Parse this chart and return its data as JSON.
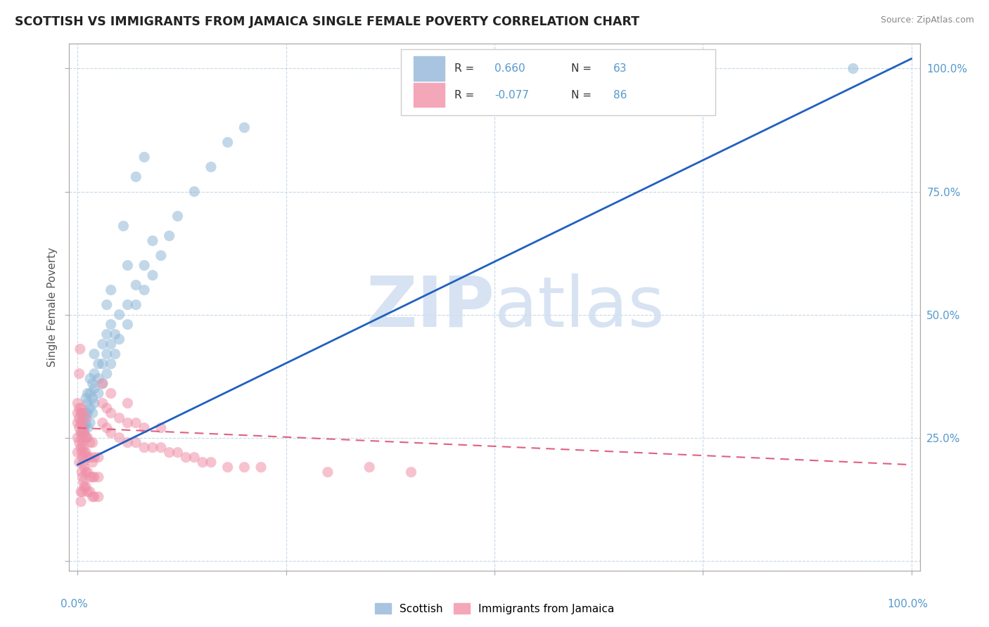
{
  "title": "SCOTTISH VS IMMIGRANTS FROM JAMAICA SINGLE FEMALE POVERTY CORRELATION CHART",
  "source": "Source: ZipAtlas.com",
  "ylabel": "Single Female Poverty",
  "watermark": "ZIPatlas",
  "scottish_color": "#90b8d8",
  "jamaica_color": "#f090a8",
  "scottish_line_color": "#2060c0",
  "jamaica_line_color": "#e06080",
  "background_color": "#ffffff",
  "grid_color": "#c8d8e8",
  "title_color": "#222222",
  "axis_label_color": "#5599cc",
  "legend_text_color": "#333333",
  "scottish_points": [
    [
      0.005,
      0.26
    ],
    [
      0.005,
      0.28
    ],
    [
      0.005,
      0.3
    ],
    [
      0.007,
      0.27
    ],
    [
      0.007,
      0.29
    ],
    [
      0.01,
      0.25
    ],
    [
      0.01,
      0.28
    ],
    [
      0.01,
      0.3
    ],
    [
      0.01,
      0.33
    ],
    [
      0.012,
      0.27
    ],
    [
      0.012,
      0.3
    ],
    [
      0.012,
      0.32
    ],
    [
      0.012,
      0.34
    ],
    [
      0.015,
      0.28
    ],
    [
      0.015,
      0.31
    ],
    [
      0.015,
      0.34
    ],
    [
      0.015,
      0.37
    ],
    [
      0.018,
      0.3
    ],
    [
      0.018,
      0.33
    ],
    [
      0.018,
      0.36
    ],
    [
      0.02,
      0.32
    ],
    [
      0.02,
      0.35
    ],
    [
      0.02,
      0.38
    ],
    [
      0.02,
      0.42
    ],
    [
      0.025,
      0.34
    ],
    [
      0.025,
      0.37
    ],
    [
      0.025,
      0.4
    ],
    [
      0.03,
      0.36
    ],
    [
      0.03,
      0.4
    ],
    [
      0.03,
      0.44
    ],
    [
      0.035,
      0.38
    ],
    [
      0.035,
      0.42
    ],
    [
      0.035,
      0.46
    ],
    [
      0.04,
      0.4
    ],
    [
      0.04,
      0.44
    ],
    [
      0.04,
      0.48
    ],
    [
      0.045,
      0.42
    ],
    [
      0.045,
      0.46
    ],
    [
      0.05,
      0.45
    ],
    [
      0.05,
      0.5
    ],
    [
      0.06,
      0.48
    ],
    [
      0.06,
      0.52
    ],
    [
      0.07,
      0.52
    ],
    [
      0.07,
      0.56
    ],
    [
      0.08,
      0.55
    ],
    [
      0.08,
      0.6
    ],
    [
      0.09,
      0.58
    ],
    [
      0.1,
      0.62
    ],
    [
      0.11,
      0.66
    ],
    [
      0.12,
      0.7
    ],
    [
      0.14,
      0.75
    ],
    [
      0.16,
      0.8
    ],
    [
      0.18,
      0.85
    ],
    [
      0.2,
      0.88
    ],
    [
      0.055,
      0.68
    ],
    [
      0.07,
      0.78
    ],
    [
      0.08,
      0.82
    ],
    [
      0.09,
      0.65
    ],
    [
      0.035,
      0.52
    ],
    [
      0.04,
      0.55
    ],
    [
      0.06,
      0.6
    ],
    [
      0.93,
      1.0
    ],
    [
      0.008,
      0.27
    ]
  ],
  "jamaica_points": [
    [
      0.0,
      0.28
    ],
    [
      0.0,
      0.3
    ],
    [
      0.0,
      0.32
    ],
    [
      0.0,
      0.25
    ],
    [
      0.0,
      0.22
    ],
    [
      0.002,
      0.27
    ],
    [
      0.002,
      0.29
    ],
    [
      0.002,
      0.31
    ],
    [
      0.002,
      0.24
    ],
    [
      0.002,
      0.2
    ],
    [
      0.004,
      0.26
    ],
    [
      0.004,
      0.28
    ],
    [
      0.004,
      0.3
    ],
    [
      0.004,
      0.23
    ],
    [
      0.005,
      0.18
    ],
    [
      0.005,
      0.22
    ],
    [
      0.005,
      0.25
    ],
    [
      0.005,
      0.28
    ],
    [
      0.005,
      0.31
    ],
    [
      0.006,
      0.17
    ],
    [
      0.006,
      0.21
    ],
    [
      0.006,
      0.24
    ],
    [
      0.006,
      0.27
    ],
    [
      0.006,
      0.3
    ],
    [
      0.007,
      0.16
    ],
    [
      0.007,
      0.2
    ],
    [
      0.007,
      0.23
    ],
    [
      0.007,
      0.26
    ],
    [
      0.008,
      0.15
    ],
    [
      0.008,
      0.19
    ],
    [
      0.008,
      0.22
    ],
    [
      0.008,
      0.26
    ],
    [
      0.01,
      0.15
    ],
    [
      0.01,
      0.18
    ],
    [
      0.01,
      0.22
    ],
    [
      0.01,
      0.25
    ],
    [
      0.01,
      0.29
    ],
    [
      0.012,
      0.14
    ],
    [
      0.012,
      0.18
    ],
    [
      0.012,
      0.21
    ],
    [
      0.012,
      0.25
    ],
    [
      0.015,
      0.14
    ],
    [
      0.015,
      0.17
    ],
    [
      0.015,
      0.21
    ],
    [
      0.015,
      0.24
    ],
    [
      0.018,
      0.13
    ],
    [
      0.018,
      0.17
    ],
    [
      0.018,
      0.2
    ],
    [
      0.018,
      0.24
    ],
    [
      0.02,
      0.13
    ],
    [
      0.02,
      0.17
    ],
    [
      0.02,
      0.21
    ],
    [
      0.025,
      0.13
    ],
    [
      0.025,
      0.17
    ],
    [
      0.025,
      0.21
    ],
    [
      0.03,
      0.28
    ],
    [
      0.03,
      0.32
    ],
    [
      0.03,
      0.36
    ],
    [
      0.035,
      0.27
    ],
    [
      0.035,
      0.31
    ],
    [
      0.04,
      0.26
    ],
    [
      0.04,
      0.3
    ],
    [
      0.04,
      0.34
    ],
    [
      0.05,
      0.25
    ],
    [
      0.05,
      0.29
    ],
    [
      0.06,
      0.24
    ],
    [
      0.06,
      0.28
    ],
    [
      0.06,
      0.32
    ],
    [
      0.07,
      0.24
    ],
    [
      0.07,
      0.28
    ],
    [
      0.08,
      0.23
    ],
    [
      0.08,
      0.27
    ],
    [
      0.09,
      0.23
    ],
    [
      0.1,
      0.23
    ],
    [
      0.1,
      0.27
    ],
    [
      0.11,
      0.22
    ],
    [
      0.12,
      0.22
    ],
    [
      0.13,
      0.21
    ],
    [
      0.14,
      0.21
    ],
    [
      0.15,
      0.2
    ],
    [
      0.16,
      0.2
    ],
    [
      0.18,
      0.19
    ],
    [
      0.2,
      0.19
    ],
    [
      0.22,
      0.19
    ],
    [
      0.3,
      0.18
    ],
    [
      0.35,
      0.19
    ],
    [
      0.4,
      0.18
    ],
    [
      0.003,
      0.43
    ],
    [
      0.002,
      0.38
    ],
    [
      0.004,
      0.14
    ],
    [
      0.004,
      0.12
    ],
    [
      0.006,
      0.14
    ]
  ]
}
